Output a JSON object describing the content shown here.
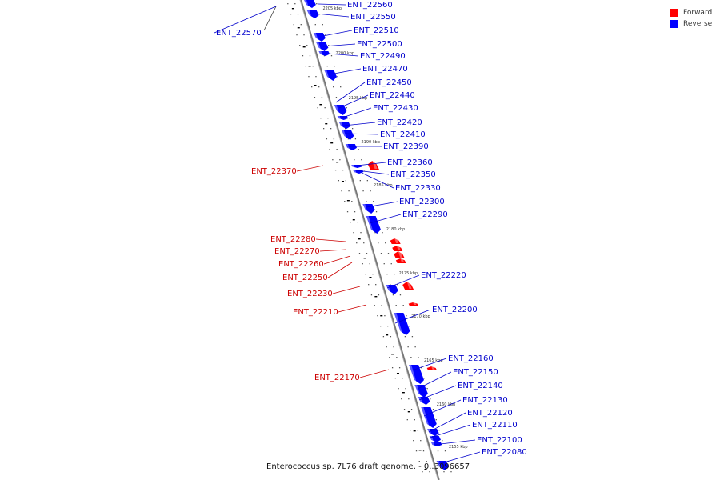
{
  "legend": {
    "items": [
      {
        "label": "Forward",
        "color": "#ff0000"
      },
      {
        "label": "Reverse",
        "color": "#0000ff"
      }
    ]
  },
  "colors": {
    "forward_label": "#cc0000",
    "reverse_label": "#0000cc",
    "forward_gene": "#ff0000",
    "reverse_gene": "#0000ff",
    "backbone": "#888888"
  },
  "footer": {
    "caption": "Enterococcus sp. 7L76 draft genome. - 0..3096657"
  },
  "ticks": [
    "2205 kbp",
    "2200 kbp",
    "2195 kbp",
    "2190 kbp",
    "2185 kbp",
    "2180 kbp",
    "2175 kbp",
    "2170 kbp",
    "2165 kbp",
    "2160 kbp",
    "2155 kbp"
  ],
  "genes": [
    {
      "id": "ENT_22570",
      "strand": "reverse"
    },
    {
      "id": "ENT_22560",
      "strand": "reverse"
    },
    {
      "id": "ENT_22550",
      "strand": "reverse"
    },
    {
      "id": "ENT_22510",
      "strand": "reverse"
    },
    {
      "id": "ENT_22500",
      "strand": "reverse"
    },
    {
      "id": "ENT_22490",
      "strand": "reverse"
    },
    {
      "id": "ENT_22470",
      "strand": "reverse"
    },
    {
      "id": "ENT_22450",
      "strand": "reverse"
    },
    {
      "id": "ENT_22440",
      "strand": "reverse"
    },
    {
      "id": "ENT_22430",
      "strand": "reverse"
    },
    {
      "id": "ENT_22420",
      "strand": "reverse"
    },
    {
      "id": "ENT_22410",
      "strand": "reverse"
    },
    {
      "id": "ENT_22390",
      "strand": "reverse"
    },
    {
      "id": "ENT_22370",
      "strand": "forward"
    },
    {
      "id": "ENT_22360",
      "strand": "reverse"
    },
    {
      "id": "ENT_22350",
      "strand": "reverse"
    },
    {
      "id": "ENT_22330",
      "strand": "reverse"
    },
    {
      "id": "ENT_22300",
      "strand": "reverse"
    },
    {
      "id": "ENT_22290",
      "strand": "reverse"
    },
    {
      "id": "ENT_22280",
      "strand": "forward"
    },
    {
      "id": "ENT_22270",
      "strand": "forward"
    },
    {
      "id": "ENT_22260",
      "strand": "forward"
    },
    {
      "id": "ENT_22250",
      "strand": "forward"
    },
    {
      "id": "ENT_22230",
      "strand": "forward"
    },
    {
      "id": "ENT_22220",
      "strand": "reverse"
    },
    {
      "id": "ENT_22210",
      "strand": "forward"
    },
    {
      "id": "ENT_22200",
      "strand": "reverse"
    },
    {
      "id": "ENT_22170",
      "strand": "forward"
    },
    {
      "id": "ENT_22160",
      "strand": "reverse"
    },
    {
      "id": "ENT_22150",
      "strand": "reverse"
    },
    {
      "id": "ENT_22140",
      "strand": "reverse"
    },
    {
      "id": "ENT_22130",
      "strand": "reverse"
    },
    {
      "id": "ENT_22120",
      "strand": "reverse"
    },
    {
      "id": "ENT_22110",
      "strand": "reverse"
    },
    {
      "id": "ENT_22100",
      "strand": "reverse"
    },
    {
      "id": "ENT_22080",
      "strand": "reverse"
    }
  ]
}
